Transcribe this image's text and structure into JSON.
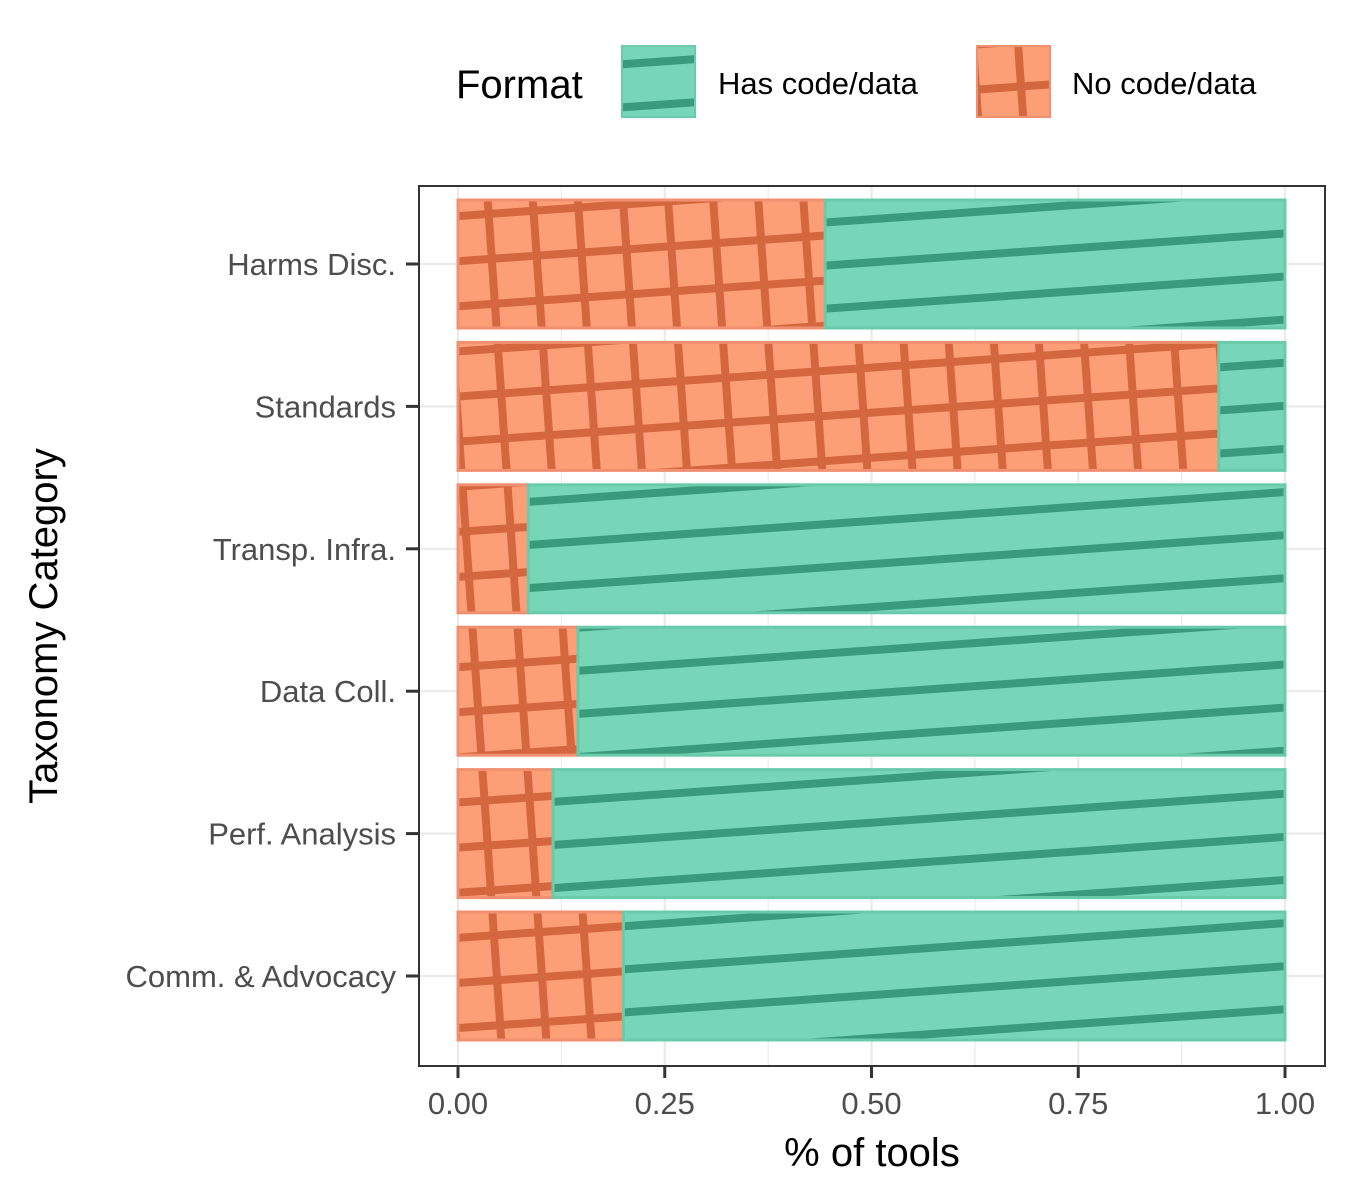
{
  "chart_data": {
    "type": "bar",
    "orientation": "horizontal",
    "stacked": true,
    "categories": [
      "Harms Disc.",
      "Standards",
      "Transp. Infra.",
      "Data Coll.",
      "Perf. Analysis",
      "Comm. & Advocacy"
    ],
    "series": [
      {
        "name": "No code/data",
        "values": [
          0.444,
          0.92,
          0.085,
          0.145,
          0.115,
          0.2
        ],
        "color": "#FC9F77",
        "pattern": "crosshatch"
      },
      {
        "name": "Has code/data",
        "values": [
          0.556,
          0.08,
          0.915,
          0.855,
          0.885,
          0.8
        ],
        "color": "#78D6B8",
        "pattern": "stripe"
      }
    ],
    "xlabel": "% of tools",
    "ylabel": "Taxonomy Category",
    "xlim": [
      0,
      1
    ],
    "xticks": [
      "0.00",
      "0.25",
      "0.50",
      "0.75",
      "1.00"
    ],
    "legend": {
      "title": "Format",
      "position": "top",
      "entries": [
        "Has code/data",
        "No code/data"
      ]
    },
    "grid": true,
    "colors": {
      "has_fill": "#78D6B8",
      "has_stripe": "#3A9A7C",
      "no_fill": "#FC9F77",
      "no_stripe": "#D5673F",
      "grid": "#EBEBEB",
      "panel_border": "#333333"
    }
  }
}
